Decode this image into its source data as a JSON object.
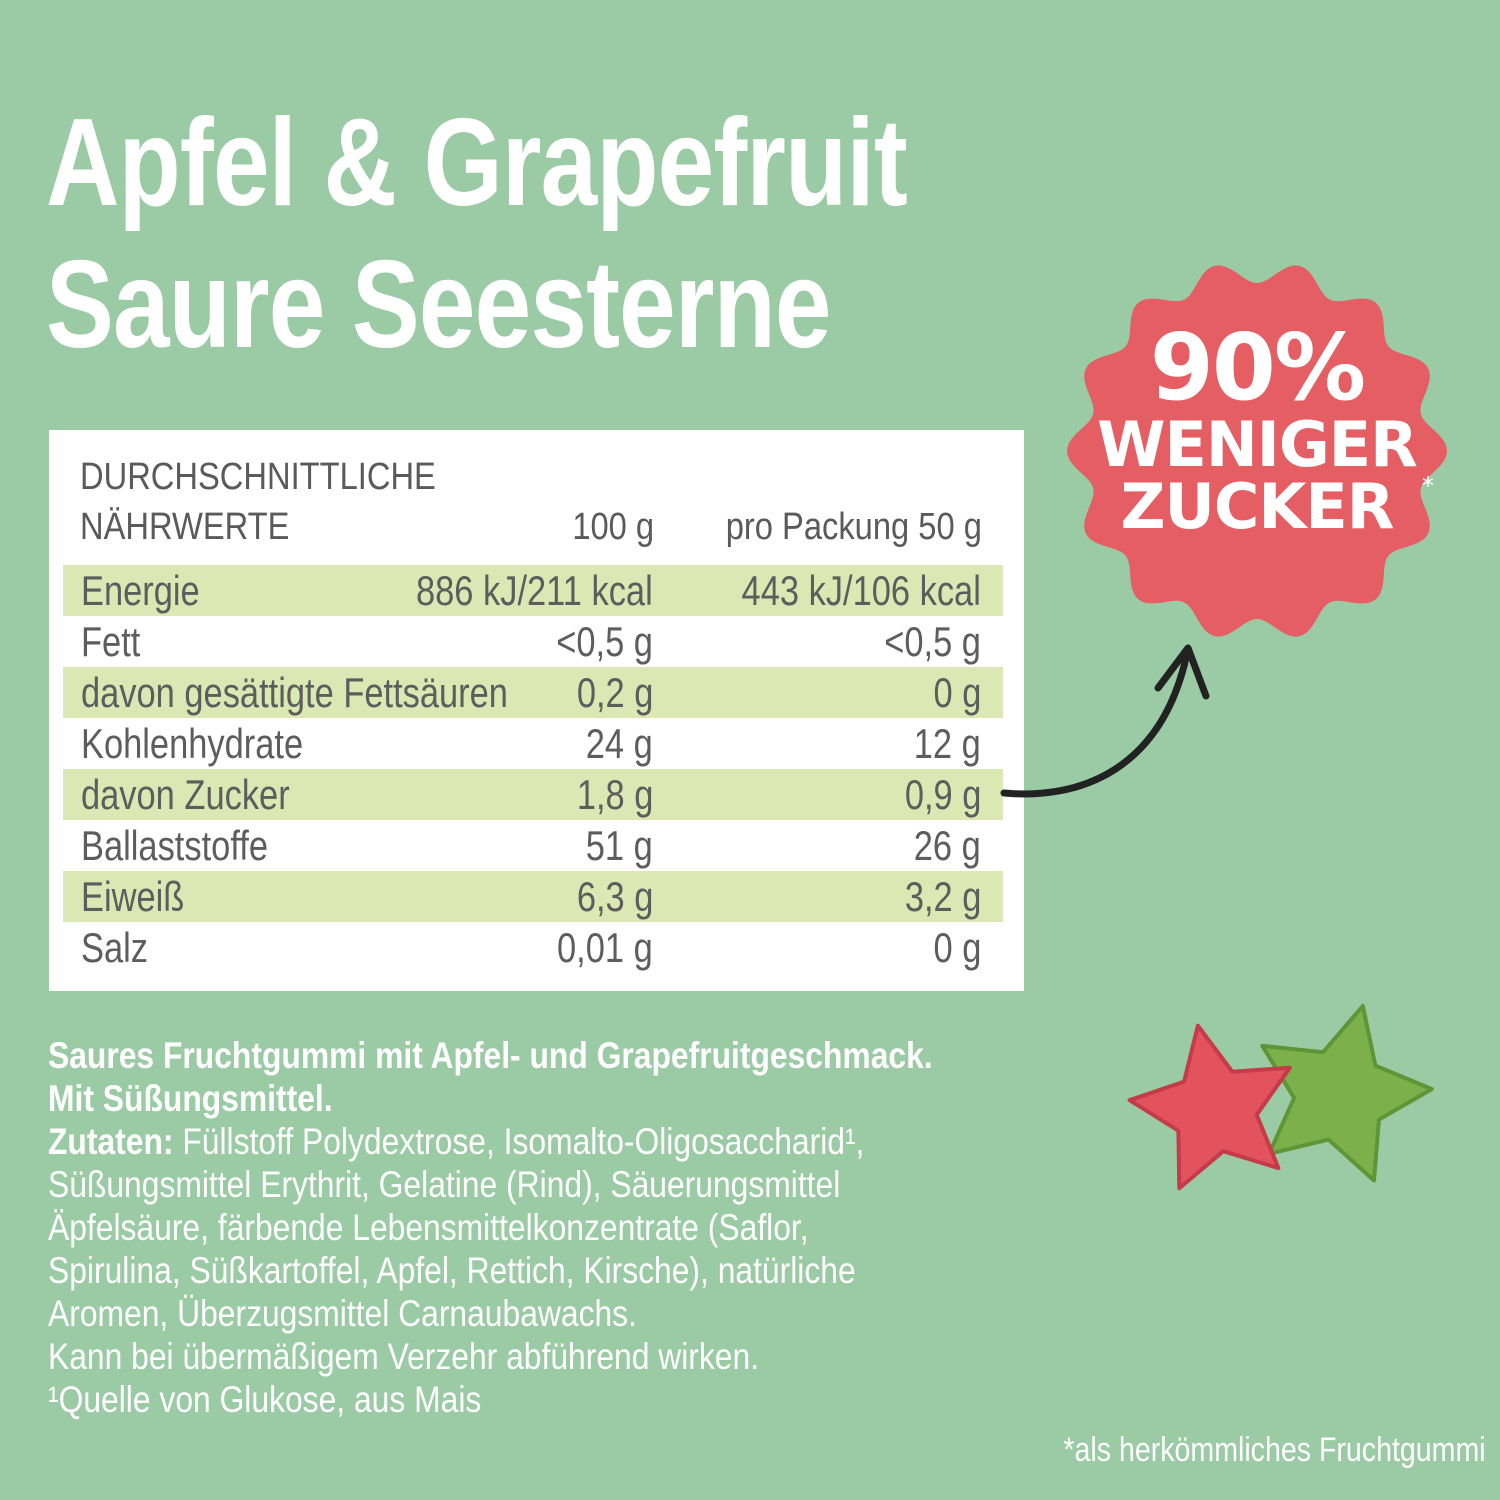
{
  "title": {
    "line1": "Apfel & Grapefruit",
    "line2": "Saure Seesterne"
  },
  "nutrition": {
    "heading_line1": "DURCHSCHNITTLICHE",
    "heading_line2": "NÄHRWERTE",
    "col_100": "100 g",
    "col_pack": "pro Packung 50 g",
    "rows": [
      {
        "label": "Energie",
        "v100": "886 kJ/211 kcal",
        "vpack": "443 kJ/106 kcal"
      },
      {
        "label": "Fett",
        "v100": "<0,5 g",
        "vpack": "<0,5 g"
      },
      {
        "label": "davon gesättigte Fettsäuren",
        "v100": "0,2 g",
        "vpack": "0 g"
      },
      {
        "label": "Kohlenhydrate",
        "v100": "24 g",
        "vpack": "12 g"
      },
      {
        "label": "davon Zucker",
        "v100": "1,8 g",
        "vpack": "0,9 g"
      },
      {
        "label": "Ballaststoffe",
        "v100": "51 g",
        "vpack": "26 g"
      },
      {
        "label": "Eiweiß",
        "v100": "6,3 g",
        "vpack": "3,2 g"
      },
      {
        "label": "Salz",
        "v100": "0,01 g",
        "vpack": "0 g"
      }
    ]
  },
  "description": {
    "line1": "Saures Fruchtgummi mit Apfel- und Grapefruitgeschmack.",
    "line2": "Mit Süßungsmittel.",
    "ingredients_label": "Zutaten:",
    "ingredients_line1": " Füllstoff Polydextrose, Isomalto-Oligosaccharid¹,",
    "ingredients_line2": "Süßungsmittel Erythrit, Gelatine (Rind), Säuerungsmittel",
    "ingredients_line3": "Äpfelsäure, färbende Lebensmittelkonzentrate (Saflor,",
    "ingredients_line4": "Spirulina, Süßkartoffel, Apfel, Rettich, Kirsche), natürliche",
    "ingredients_line5": "Aromen, Überzugsmittel Carnaubawachs.",
    "warning": "Kann bei übermäßigem Verzehr abführend wirken.",
    "source_note": "¹Quelle von Glukose, aus Mais"
  },
  "badge": {
    "percent": "90%",
    "line1": "WENIGER",
    "line2": "ZUCKER",
    "asterisk": "*"
  },
  "footnote": "*als herkömmliches Fruchtgummi",
  "colors": {
    "background": "#9bcba4",
    "badge": "#e45e63",
    "row_shade": "#dbe8b4",
    "gummy_red": "#e3535e",
    "gummy_green": "#7cb04a"
  }
}
